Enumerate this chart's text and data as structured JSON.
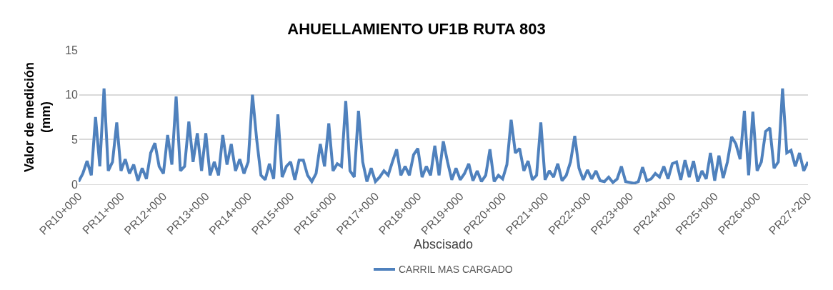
{
  "chart_data": {
    "type": "line",
    "title": "AHUELLAMIENTO UF1B RUTA 803",
    "xlabel": "Abscisado",
    "ylabel": "Valor de medición\n(mm)",
    "categories": [
      "PR10+000",
      null,
      null,
      null,
      null,
      null,
      null,
      null,
      null,
      null,
      "PR11+000",
      null,
      null,
      null,
      null,
      null,
      null,
      null,
      null,
      null,
      "PR12+000",
      null,
      null,
      null,
      null,
      null,
      null,
      null,
      null,
      null,
      "PR13+000",
      null,
      null,
      null,
      null,
      null,
      null,
      null,
      null,
      null,
      "PR14+000",
      null,
      null,
      null,
      null,
      null,
      null,
      null,
      null,
      null,
      "PR15+000",
      null,
      null,
      null,
      null,
      null,
      null,
      null,
      null,
      null,
      "PR16+000",
      null,
      null,
      null,
      null,
      null,
      null,
      null,
      null,
      null,
      "PR17+000",
      null,
      null,
      null,
      null,
      null,
      null,
      null,
      null,
      null,
      "PR18+000",
      null,
      null,
      null,
      null,
      null,
      null,
      null,
      null,
      null,
      "PR19+000",
      null,
      null,
      null,
      null,
      null,
      null,
      null,
      null,
      null,
      "PR20+000",
      null,
      null,
      null,
      null,
      null,
      null,
      null,
      null,
      null,
      "PR21+000",
      null,
      null,
      null,
      null,
      null,
      null,
      null,
      null,
      null,
      "PR22+000",
      null,
      null,
      null,
      null,
      null,
      null,
      null,
      null,
      null,
      "PR23+000",
      null,
      null,
      null,
      null,
      null,
      null,
      null,
      null,
      null,
      "PR24+000",
      null,
      null,
      null,
      null,
      null,
      null,
      null,
      null,
      null,
      "PR25+000",
      null,
      null,
      null,
      null,
      null,
      null,
      null,
      null,
      null,
      "PR26+000",
      null,
      null,
      null,
      null,
      null,
      null,
      null,
      null,
      null,
      null,
      null,
      "PR27+200"
    ],
    "series": [
      {
        "name": "CARRIL MAS CARGADO",
        "color": "#4f81bd",
        "values": [
          0.3,
          1.2,
          2.6,
          1.0,
          7.5,
          2.0,
          10.7,
          1.5,
          2.5,
          6.9,
          1.5,
          2.8,
          1.2,
          2.2,
          0.4,
          1.8,
          0.6,
          3.5,
          4.6,
          2.0,
          1.2,
          5.5,
          2.2,
          9.8,
          1.5,
          2.0,
          7.0,
          2.5,
          5.7,
          1.5,
          5.7,
          1.0,
          2.5,
          1.0,
          5.5,
          2.2,
          4.5,
          1.5,
          2.8,
          1.2,
          2.5,
          10.0,
          5.0,
          1.0,
          0.5,
          2.3,
          0.6,
          7.8,
          0.8,
          2.0,
          2.5,
          0.5,
          2.7,
          2.7,
          1.0,
          0.3,
          1.2,
          4.5,
          2.0,
          6.8,
          1.5,
          2.3,
          2.0,
          9.3,
          1.5,
          0.8,
          8.2,
          2.5,
          0.3,
          1.8,
          0.3,
          0.8,
          1.5,
          1.0,
          2.5,
          3.9,
          1.0,
          2.0,
          1.0,
          3.3,
          4.0,
          0.8,
          2.0,
          1.0,
          4.3,
          1.0,
          4.8,
          2.5,
          0.5,
          1.8,
          0.5,
          1.2,
          2.3,
          0.4,
          1.5,
          0.3,
          1.0,
          3.9,
          0.3,
          1.0,
          0.6,
          2.2,
          7.2,
          3.5,
          4.0,
          1.5,
          2.6,
          0.5,
          1.0,
          6.9,
          0.5,
          1.5,
          0.8,
          2.3,
          0.4,
          1.0,
          2.5,
          5.4,
          1.8,
          0.5,
          1.6,
          0.6,
          1.5,
          0.4,
          0.3,
          0.8,
          0.2,
          0.6,
          2.0,
          0.3,
          0.2,
          0.1,
          0.3,
          1.9,
          0.4,
          0.6,
          1.2,
          0.8,
          2.0,
          0.6,
          2.3,
          2.5,
          0.5,
          2.7,
          0.8,
          2.6,
          0.3,
          1.5,
          0.6,
          3.5,
          0.4,
          3.2,
          0.7,
          2.5,
          5.3,
          4.5,
          2.8,
          8.2,
          1.0,
          8.1,
          1.5,
          2.5,
          5.9,
          6.3,
          1.8,
          2.5,
          10.7,
          3.5,
          3.8,
          2.0,
          3.5,
          1.5,
          2.5
        ]
      }
    ],
    "ylim": [
      0,
      15
    ],
    "yticks": [
      0,
      5,
      10,
      15
    ],
    "grid": "y",
    "legend": "bottom",
    "marker": "none",
    "line_style": "solid"
  }
}
